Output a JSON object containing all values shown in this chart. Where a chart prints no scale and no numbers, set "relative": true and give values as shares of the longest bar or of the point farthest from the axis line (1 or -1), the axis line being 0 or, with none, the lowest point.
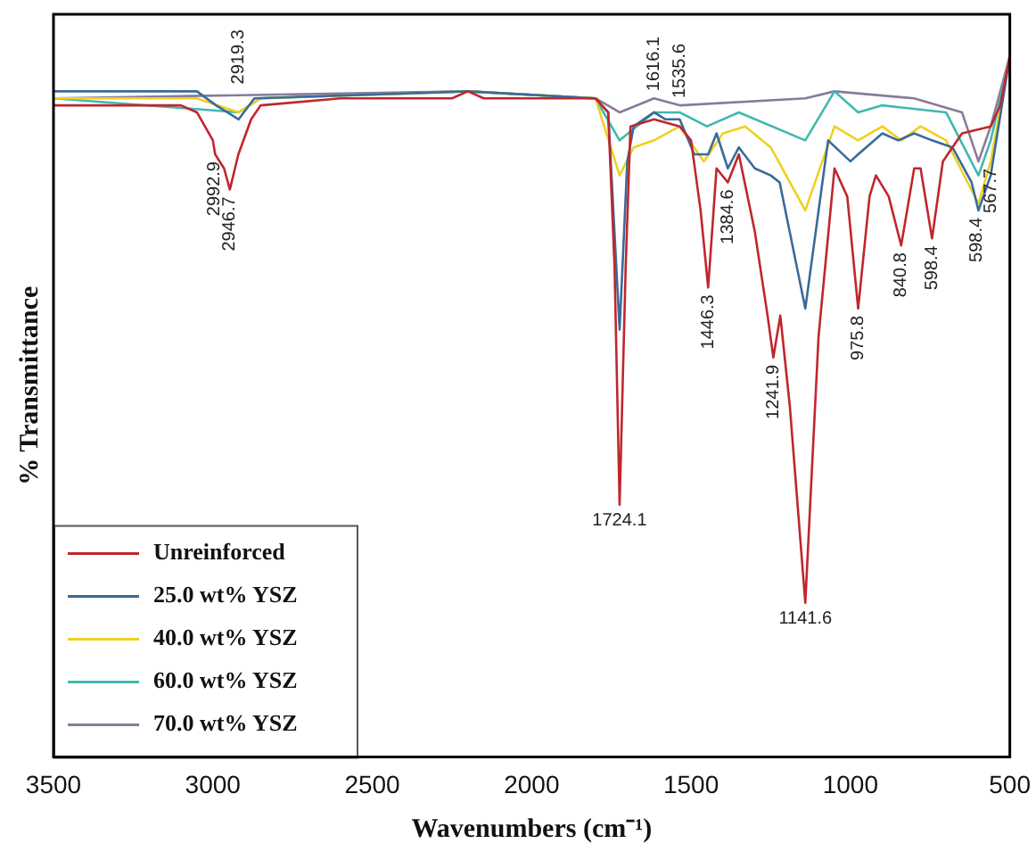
{
  "chart_data": {
    "type": "line",
    "relative": true,
    "xlabel": "Wavenumbers (cm⁻¹)",
    "ylabel": "% Transmittance",
    "xlim": [
      3500,
      500
    ],
    "xticks": [
      3500,
      3000,
      2500,
      2000,
      1500,
      1000,
      500
    ],
    "grid": false,
    "legend": "bottom left",
    "marker": "none",
    "line_style": "solid",
    "series": [
      {
        "name": "Unreinforced",
        "color": "#c0262d",
        "x": [
          3500,
          3100,
          3050,
          3000,
          2992.9,
          2965,
          2946.7,
          2920,
          2880,
          2850,
          2600,
          2250,
          2200,
          2150,
          1800,
          1760,
          1740,
          1724.1,
          1705,
          1690,
          1616.1,
          1535.6,
          1500,
          1470,
          1446.3,
          1420,
          1384.6,
          1350,
          1300,
          1260,
          1241.9,
          1220,
          1190,
          1141.6,
          1100,
          1050,
          1010,
          975.8,
          940,
          920,
          880,
          840.8,
          800,
          780,
          744,
          710,
          650,
          560,
          530,
          500
        ],
        "values": [
          0.93,
          0.93,
          0.92,
          0.88,
          0.86,
          0.84,
          0.81,
          0.86,
          0.91,
          0.93,
          0.94,
          0.94,
          0.95,
          0.94,
          0.94,
          0.92,
          0.7,
          0.36,
          0.7,
          0.9,
          0.91,
          0.9,
          0.88,
          0.78,
          0.67,
          0.84,
          0.82,
          0.86,
          0.75,
          0.63,
          0.57,
          0.63,
          0.5,
          0.22,
          0.6,
          0.84,
          0.8,
          0.64,
          0.8,
          0.83,
          0.8,
          0.73,
          0.84,
          0.84,
          0.74,
          0.85,
          0.89,
          0.9,
          0.93,
          1.0
        ]
      },
      {
        "name": "25.0 wt% YSZ",
        "color": "#3a6a9a",
        "x": [
          3500,
          3050,
          2990,
          2919.3,
          2870,
          2200,
          1800,
          1760,
          1724.1,
          1700,
          1680,
          1616.1,
          1580,
          1535.6,
          1490,
          1446.3,
          1420,
          1384.6,
          1350,
          1300,
          1250,
          1222,
          1141.6,
          1070,
          1000,
          975.8,
          900,
          850,
          800,
          744,
          680,
          620,
          598.4,
          560,
          500
        ],
        "values": [
          0.95,
          0.95,
          0.93,
          0.91,
          0.94,
          0.95,
          0.94,
          0.92,
          0.61,
          0.85,
          0.9,
          0.92,
          0.91,
          0.91,
          0.86,
          0.86,
          0.89,
          0.84,
          0.87,
          0.84,
          0.83,
          0.82,
          0.64,
          0.88,
          0.85,
          0.86,
          0.89,
          0.88,
          0.89,
          0.88,
          0.87,
          0.82,
          0.78,
          0.83,
          1.0
        ]
      },
      {
        "name": "40.0 wt% YSZ",
        "color": "#f0d020",
        "x": [
          3500,
          3050,
          2919.3,
          2850,
          2200,
          1800,
          1724.1,
          1680,
          1616.1,
          1535.6,
          1460,
          1400,
          1330,
          1250,
          1141.6,
          1050,
          975.8,
          900,
          840.8,
          780,
          700,
          598.4,
          560,
          500
        ],
        "values": [
          0.94,
          0.94,
          0.92,
          0.94,
          0.95,
          0.94,
          0.83,
          0.87,
          0.88,
          0.9,
          0.85,
          0.89,
          0.9,
          0.87,
          0.78,
          0.9,
          0.88,
          0.9,
          0.88,
          0.9,
          0.88,
          0.79,
          0.85,
          1.0
        ]
      },
      {
        "name": "60.0 wt% YSZ",
        "color": "#40b8b0",
        "x": [
          3500,
          2919.3,
          2850,
          2200,
          1800,
          1724.1,
          1616.1,
          1535.6,
          1450,
          1350,
          1141.6,
          1050,
          975.8,
          900,
          700,
          598.4,
          560,
          500
        ],
        "values": [
          0.94,
          0.92,
          0.94,
          0.95,
          0.94,
          0.88,
          0.92,
          0.92,
          0.9,
          0.92,
          0.88,
          0.95,
          0.92,
          0.93,
          0.92,
          0.83,
          0.88,
          1.0
        ]
      },
      {
        "name": "70.0 wt% YSZ",
        "color": "#8a7a9a",
        "x": [
          3500,
          2200,
          1800,
          1724.1,
          1616.1,
          1535.6,
          1141.6,
          1050,
          800,
          650,
          598.4,
          560,
          500
        ],
        "values": [
          0.94,
          0.95,
          0.94,
          0.92,
          0.94,
          0.93,
          0.94,
          0.95,
          0.94,
          0.92,
          0.85,
          0.9,
          1.0
        ]
      }
    ],
    "annotations": [
      {
        "text": "2992.9",
        "x": 2995,
        "y": 0.86
      },
      {
        "text": "2946.7",
        "x": 2946.7,
        "y": 0.81
      },
      {
        "text": "2919.3",
        "x": 2919.3,
        "y": 0.95
      },
      {
        "text": "1616.1",
        "x": 1616.1,
        "y": 0.94
      },
      {
        "text": "1535.6",
        "x": 1535.6,
        "y": 0.93
      },
      {
        "text": "1724.1",
        "x": 1724.1,
        "y": 0.36
      },
      {
        "text": "1446.3",
        "x": 1446.3,
        "y": 0.67
      },
      {
        "text": "1384.6",
        "x": 1384.6,
        "y": 0.82
      },
      {
        "text": "1241.9",
        "x": 1241.9,
        "y": 0.57
      },
      {
        "text": "1141.6",
        "x": 1141.6,
        "y": 0.22
      },
      {
        "text": "975.8",
        "x": 975.8,
        "y": 0.64
      },
      {
        "text": "840.8",
        "x": 840.8,
        "y": 0.73
      },
      {
        "text": "598.4",
        "x": 744,
        "y": 0.74
      },
      {
        "text": "598.4",
        "x": 605,
        "y": 0.78
      },
      {
        "text": "567.7",
        "x": 560,
        "y": 0.85
      }
    ]
  }
}
